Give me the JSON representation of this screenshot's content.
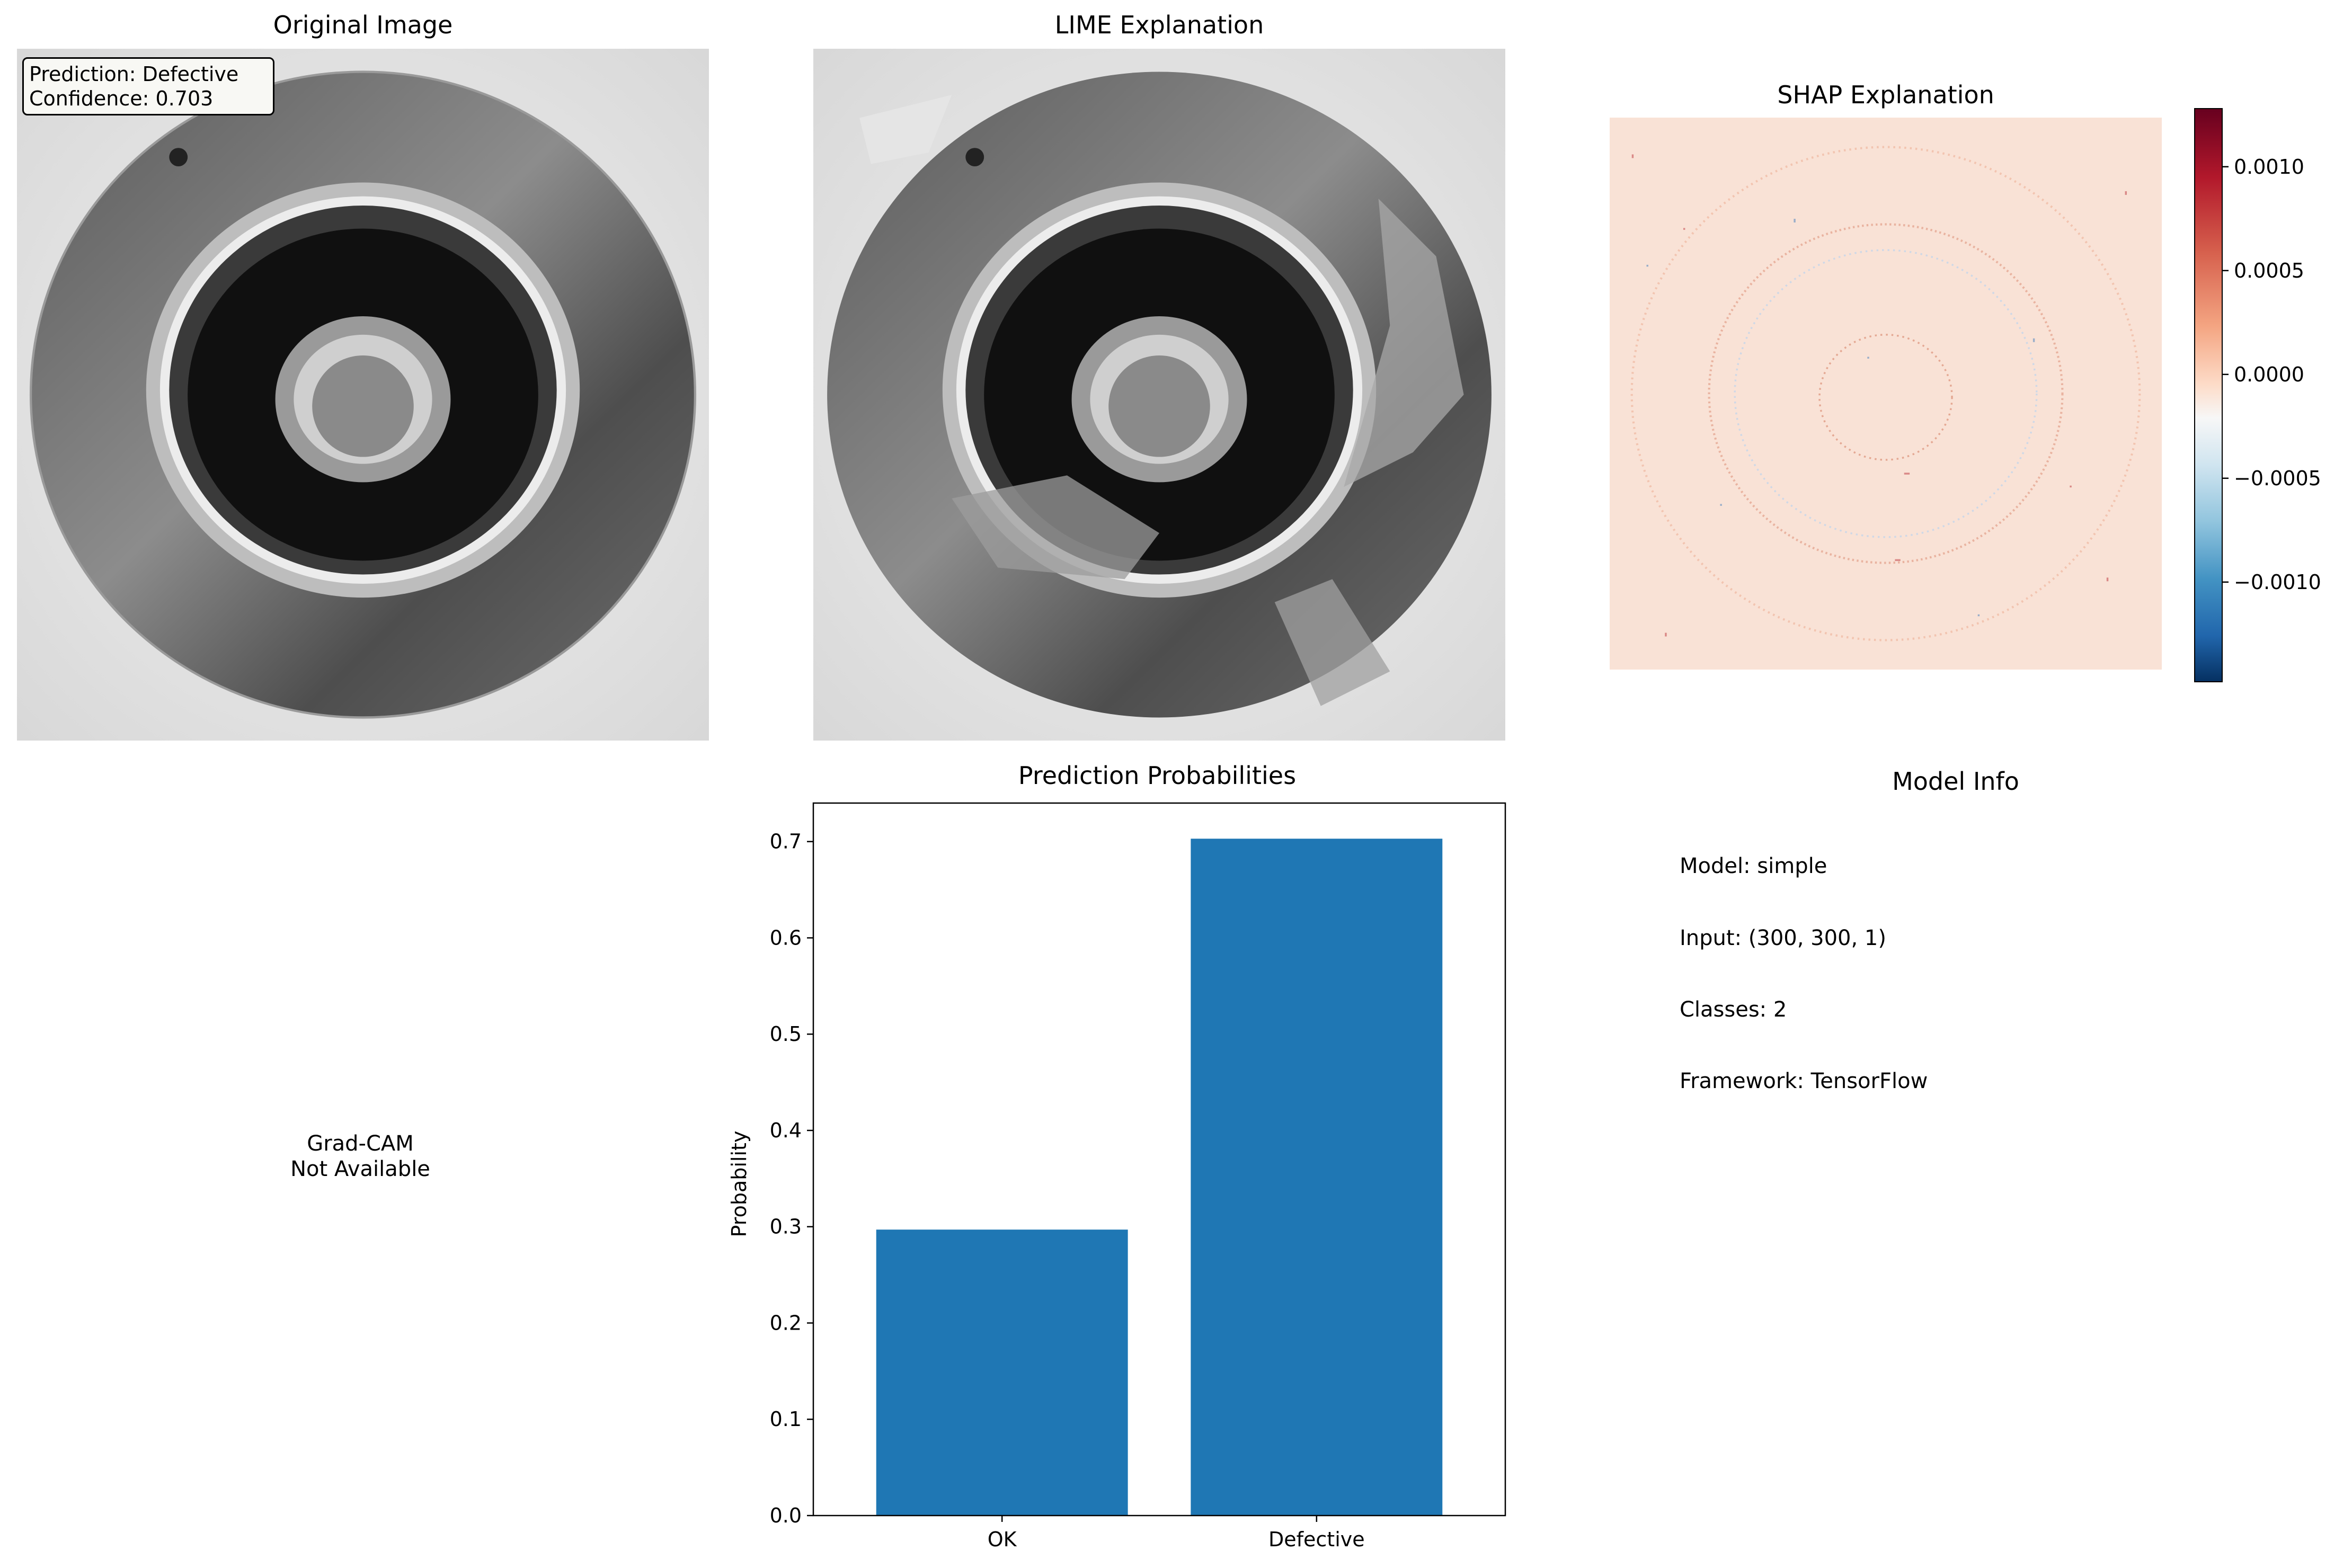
{
  "panels": {
    "original": {
      "title": "Original Image",
      "prediction_line": "Prediction: Defective",
      "confidence_line": "Confidence: 0.703"
    },
    "lime": {
      "title": "LIME Explanation"
    },
    "shap": {
      "title": "SHAP Explanation",
      "colorbar": {
        "ticks": [
          "0.0010",
          "0.0005",
          "0.0000",
          "−0.0005",
          "−0.0010"
        ],
        "tick_values": [
          0.001,
          0.0005,
          0.0,
          -0.0005,
          -0.001
        ],
        "range": [
          -0.00148,
          0.00128
        ],
        "colormap": "RdBu_r"
      }
    },
    "gradcam": {
      "line1": "Grad-CAM",
      "line2": "Not Available"
    },
    "model_info": {
      "title": "Model Info",
      "lines": [
        "Model: simple",
        "Input: (300, 300, 1)",
        "Classes: 2",
        "Framework: TensorFlow"
      ]
    }
  },
  "chart_data": {
    "type": "bar",
    "title": "Prediction Probabilities",
    "xlabel": "",
    "ylabel": "Probability",
    "categories": [
      "OK",
      "Defective"
    ],
    "values": [
      0.297,
      0.703
    ],
    "ylim": [
      0,
      0.74
    ],
    "yticks": [
      "0.0",
      "0.1",
      "0.2",
      "0.3",
      "0.4",
      "0.5",
      "0.6",
      "0.7"
    ],
    "bar_color": "#1f77b4",
    "grid": false
  }
}
